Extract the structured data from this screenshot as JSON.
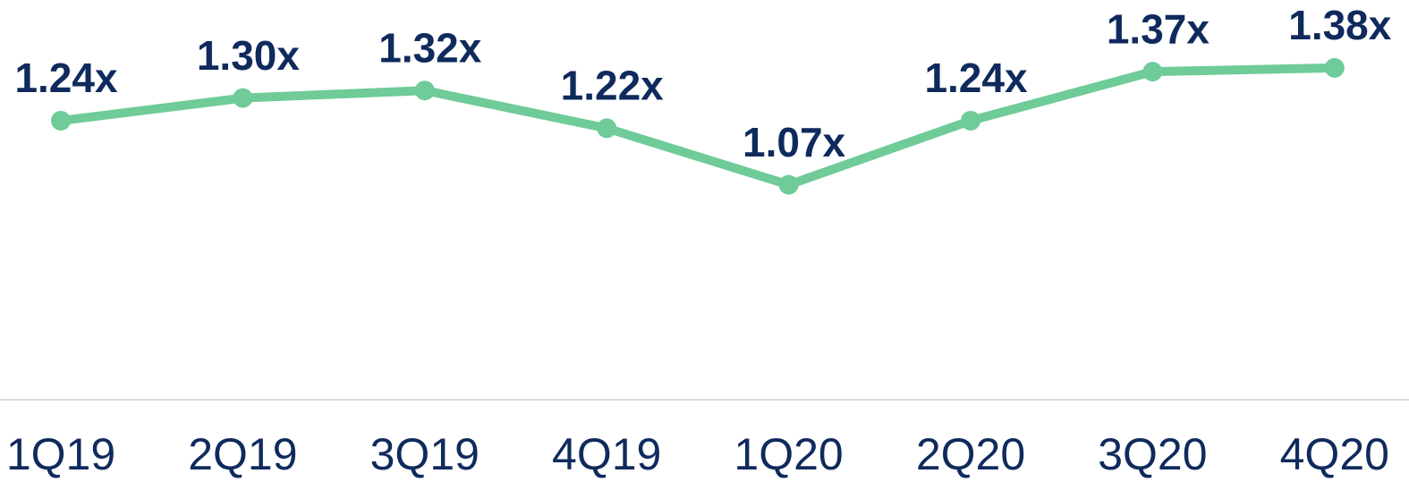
{
  "chart_data": {
    "type": "line",
    "categories": [
      "1Q19",
      "2Q19",
      "3Q19",
      "4Q19",
      "1Q20",
      "2Q20",
      "3Q20",
      "4Q20"
    ],
    "values": [
      1.24,
      1.3,
      1.32,
      1.22,
      1.07,
      1.24,
      1.37,
      1.38
    ],
    "value_labels": [
      "1.24x",
      "1.30x",
      "1.32x",
      "1.22x",
      "1.07x",
      "1.24x",
      "1.37x",
      "1.38x"
    ],
    "color": "#6fcb98",
    "ylim": [
      0.5,
      1.56
    ]
  }
}
